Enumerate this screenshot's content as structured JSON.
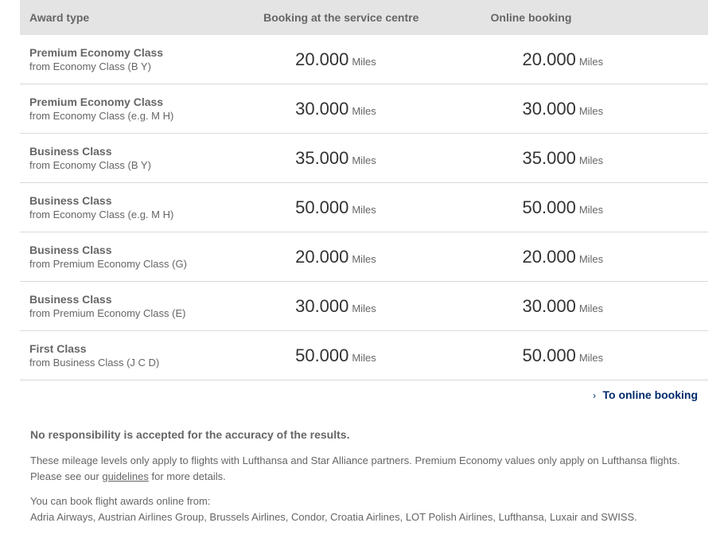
{
  "table": {
    "columns": [
      "Award type",
      "Booking at the service centre",
      "Online booking"
    ],
    "rows": [
      {
        "title": "Premium Economy Class",
        "sub": "from Economy Class (B Y)",
        "centre_value": "20.000",
        "centre_unit": "Miles",
        "online_value": "20.000",
        "online_unit": "Miles"
      },
      {
        "title": "Premium Economy Class",
        "sub": "from Economy Class (e.g. M H)",
        "centre_value": "30.000",
        "centre_unit": "Miles",
        "online_value": "30.000",
        "online_unit": "Miles"
      },
      {
        "title": "Business Class",
        "sub": "from Economy Class (B Y)",
        "centre_value": "35.000",
        "centre_unit": "Miles",
        "online_value": "35.000",
        "online_unit": "Miles"
      },
      {
        "title": "Business Class",
        "sub": "from Economy Class (e.g. M H)",
        "centre_value": "50.000",
        "centre_unit": "Miles",
        "online_value": "50.000",
        "online_unit": "Miles"
      },
      {
        "title": "Business Class",
        "sub": "from Premium Economy Class (G)",
        "centre_value": "20.000",
        "centre_unit": "Miles",
        "online_value": "20.000",
        "online_unit": "Miles"
      },
      {
        "title": "Business Class",
        "sub": "from Premium Economy Class (E)",
        "centre_value": "30.000",
        "centre_unit": "Miles",
        "online_value": "30.000",
        "online_unit": "Miles"
      },
      {
        "title": "First Class",
        "sub": "from Business Class (J C D)",
        "centre_value": "50.000",
        "centre_unit": "Miles",
        "online_value": "50.000",
        "online_unit": "Miles"
      }
    ]
  },
  "link": {
    "label": "To online booking"
  },
  "footer": {
    "disclaimer": "No responsibility is accepted for the accuracy of the results.",
    "para1": "These mileage levels only apply to flights with Lufthansa and Star Alliance partners. Premium Economy values only apply on Lufthansa flights.",
    "para2_prefix": "Please see our ",
    "para2_link": "guidelines",
    "para2_suffix": " for more details.",
    "para3": "You can book flight awards online from:",
    "para4": "Adria Airways, Austrian Airlines Group, Brussels Airlines, Condor, Croatia Airlines, LOT Polish Airlines, Lufthansa, Luxair and SWISS."
  }
}
